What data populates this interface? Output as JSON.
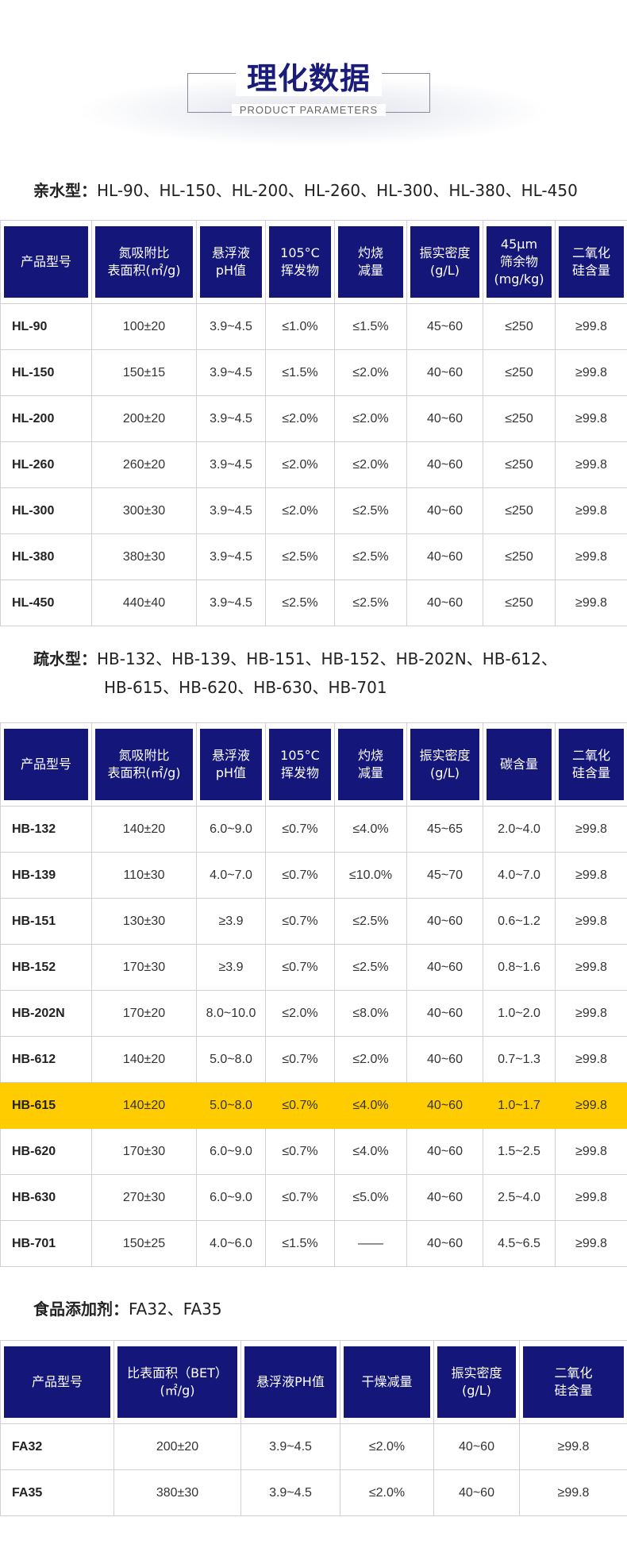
{
  "header": {
    "title": "理化数据",
    "subtitle": "PRODUCT PARAMETERS"
  },
  "hydrophilic": {
    "label": "亲水型：",
    "models_text": "HL-90、HL-150、HL-200、HL-260、HL-300、HL-380、HL-450",
    "columns": [
      "产品型号",
      "氮吸附比\n表面积(㎡/g)",
      "悬浮液\npH值",
      "105°C\n挥发物",
      "灼烧\n减量",
      "振实密度\n(g/L)",
      "45μm\n筛余物\n(mg/kg)",
      "二氧化\n硅含量"
    ],
    "rows": [
      [
        "HL-90",
        "100±20",
        "3.9~4.5",
        "≤1.0%",
        "≤1.5%",
        "45~60",
        "≤250",
        "≥99.8"
      ],
      [
        "HL-150",
        "150±15",
        "3.9~4.5",
        "≤1.5%",
        "≤2.0%",
        "40~60",
        "≤250",
        "≥99.8"
      ],
      [
        "HL-200",
        "200±20",
        "3.9~4.5",
        "≤2.0%",
        "≤2.0%",
        "40~60",
        "≤250",
        "≥99.8"
      ],
      [
        "HL-260",
        "260±20",
        "3.9~4.5",
        "≤2.0%",
        "≤2.0%",
        "40~60",
        "≤250",
        "≥99.8"
      ],
      [
        "HL-300",
        "300±30",
        "3.9~4.5",
        "≤2.0%",
        "≤2.5%",
        "40~60",
        "≤250",
        "≥99.8"
      ],
      [
        "HL-380",
        "380±30",
        "3.9~4.5",
        "≤2.5%",
        "≤2.5%",
        "40~60",
        "≤250",
        "≥99.8"
      ],
      [
        "HL-450",
        "440±40",
        "3.9~4.5",
        "≤2.5%",
        "≤2.5%",
        "40~60",
        "≤250",
        "≥99.8"
      ]
    ]
  },
  "hydrophobic": {
    "label": "疏水型：",
    "models_line1": "HB-132、HB-139、HB-151、HB-152、HB-202N、HB-612、",
    "models_line2": "HB-615、HB-620、HB-630、HB-701",
    "columns": [
      "产品型号",
      "氮吸附比\n表面积(㎡/g)",
      "悬浮液\npH值",
      "105°C\n挥发物",
      "灼烧\n减量",
      "振实密度\n(g/L)",
      "碳含量",
      "二氧化\n硅含量"
    ],
    "highlight_row": "HB-615",
    "highlight_color": "#ffcc00",
    "rows": [
      [
        "HB-132",
        "140±20",
        "6.0~9.0",
        "≤0.7%",
        "≤4.0%",
        "45~65",
        "2.0~4.0",
        "≥99.8"
      ],
      [
        "HB-139",
        "110±30",
        "4.0~7.0",
        "≤0.7%",
        "≤10.0%",
        "45~70",
        "4.0~7.0",
        "≥99.8"
      ],
      [
        "HB-151",
        "130±30",
        "≥3.9",
        "≤0.7%",
        "≤2.5%",
        "40~60",
        "0.6~1.2",
        "≥99.8"
      ],
      [
        "HB-152",
        "170±30",
        "≥3.9",
        "≤0.7%",
        "≤2.5%",
        "40~60",
        "0.8~1.6",
        "≥99.8"
      ],
      [
        "HB-202N",
        "170±20",
        "8.0~10.0",
        "≤2.0%",
        "≤8.0%",
        "40~60",
        "1.0~2.0",
        "≥99.8"
      ],
      [
        "HB-612",
        "140±20",
        "5.0~8.0",
        "≤0.7%",
        "≤2.0%",
        "40~60",
        "0.7~1.3",
        "≥99.8"
      ],
      [
        "HB-615",
        "140±20",
        "5.0~8.0",
        "≤0.7%",
        "≤4.0%",
        "40~60",
        "1.0~1.7",
        "≥99.8"
      ],
      [
        "HB-620",
        "170±30",
        "6.0~9.0",
        "≤0.7%",
        "≤4.0%",
        "40~60",
        "1.5~2.5",
        "≥99.8"
      ],
      [
        "HB-630",
        "270±30",
        "6.0~9.0",
        "≤0.7%",
        "≤5.0%",
        "40~60",
        "2.5~4.0",
        "≥99.8"
      ],
      [
        "HB-701",
        "150±25",
        "4.0~6.0",
        "≤1.5%",
        "——",
        "40~60",
        "4.5~6.5",
        "≥99.8"
      ]
    ]
  },
  "food": {
    "label": "食品添加剂：",
    "models_text": "FA32、FA35",
    "columns": [
      "产品型号",
      "比表面积（BET）\n(㎡/g)",
      "悬浮液PH值",
      "干燥减量",
      "振实密度\n(g/L)",
      "二氧化\n硅含量"
    ],
    "rows": [
      [
        "FA32",
        "200±20",
        "3.9~4.5",
        "≤2.0%",
        "40~60",
        "≥99.8"
      ],
      [
        "FA35",
        "380±30",
        "3.9~4.5",
        "≤2.0%",
        "40~60",
        "≥99.8"
      ]
    ]
  },
  "colors": {
    "header_cell_bg": "#14167a",
    "title_color": "#1a1c7a",
    "highlight": "#ffcc00"
  }
}
